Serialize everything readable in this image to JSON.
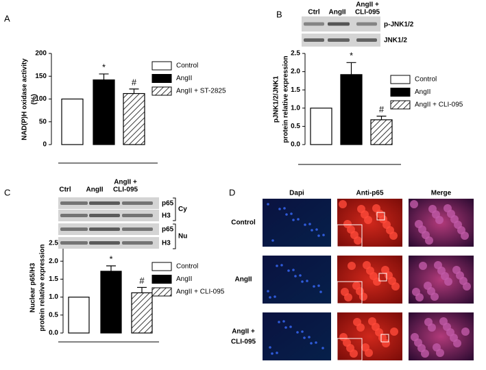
{
  "panel_letters": [
    "A",
    "B",
    "C",
    "D"
  ],
  "chart_data": [
    {
      "type": "bar",
      "ylabel": [
        "NAD(P)H oxidase activity",
        "(%)"
      ],
      "categories": [
        "Control",
        "AngII",
        "AngII + ST-2825"
      ],
      "values": [
        100,
        142,
        112
      ],
      "errors": [
        null,
        13,
        10
      ],
      "bar_labels": [
        null,
        "*",
        "#"
      ],
      "fills": [
        "white",
        "black",
        "hatch"
      ],
      "ylim": [
        0,
        200
      ],
      "yticks": [
        0,
        50,
        100,
        150,
        200
      ]
    },
    {
      "type": "bar",
      "ylabel": [
        "pJNK1/2/JNK1",
        "protein relative expression"
      ],
      "categories": [
        "Control",
        "AngII",
        "AngII + CLI-095"
      ],
      "values": [
        1,
        1.92,
        0.68
      ],
      "errors": [
        null,
        0.33,
        0.1
      ],
      "bar_labels": [
        null,
        "*",
        "#"
      ],
      "fills": [
        "white",
        "black",
        "hatch"
      ],
      "ylim": [
        0,
        2.5
      ],
      "yticks": [
        {
          "value": 0,
          "label": "0.0"
        },
        0.5,
        {
          "value": 1,
          "label": "1.0"
        },
        1.5,
        {
          "value": 2,
          "label": "2.0"
        },
        2.5
      ]
    },
    {
      "type": "bar",
      "ylabel": [
        "Nuclear p65/H3",
        "protein relative expression"
      ],
      "categories": [
        "Control",
        "AngII",
        "AngII + CLI-095"
      ],
      "values": [
        1,
        1.72,
        1.12
      ],
      "errors": [
        null,
        0.15,
        0.15
      ],
      "bar_labels": [
        null,
        "*",
        "#"
      ],
      "fills": [
        "white",
        "black",
        "hatch"
      ],
      "ylim": [
        0,
        2.5
      ],
      "yticks": [
        {
          "value": 0,
          "label": "0.0"
        },
        0.5,
        {
          "value": 1,
          "label": "1.0"
        },
        1.5,
        {
          "value": 2,
          "label": "2.0"
        },
        2.5
      ]
    }
  ],
  "blot_b": {
    "lanes": [
      [
        "Ctrl"
      ],
      [
        "AngII"
      ],
      [
        "AngII +",
        "CLI-095"
      ]
    ],
    "rows": [
      "p-JNK1/2",
      "JNK1/2"
    ]
  },
  "blot_c": {
    "lanes": [
      [
        "Ctrl"
      ],
      [
        "AngII"
      ],
      [
        "AngII +",
        "CLI-095"
      ]
    ],
    "rows": [
      "p65",
      "H3",
      "p65",
      "H3"
    ],
    "groups": [
      "Cy",
      "Nu"
    ]
  },
  "microscopy": {
    "columns": [
      "Dapi",
      "Anti-p65",
      "Merge"
    ],
    "rows": [
      [
        "Control"
      ],
      [
        "AngII"
      ],
      [
        "AngII +",
        "CLI-095"
      ]
    ]
  }
}
